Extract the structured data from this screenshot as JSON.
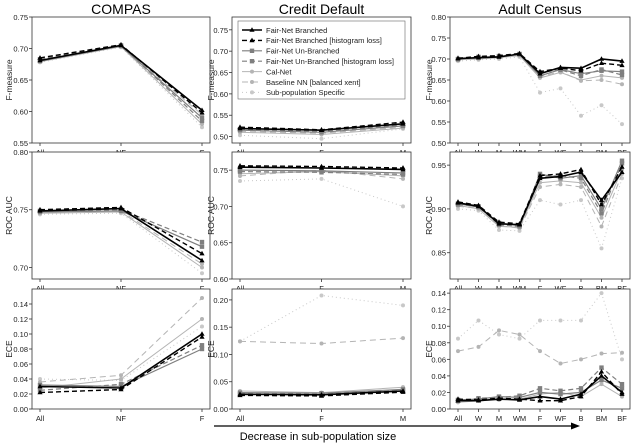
{
  "column_titles": [
    "COMPAS",
    "Credit Default",
    "Adult Census"
  ],
  "bottom_label": "Decrease in sub-population size",
  "series": [
    {
      "name": "Fair-Net Branched",
      "color": "#000000",
      "dash": "",
      "marker": "triangle",
      "width": 1.6
    },
    {
      "name": "Fair-Net Branched [histogram loss]",
      "color": "#000000",
      "dash": "5,3",
      "marker": "triangle",
      "width": 1.4
    },
    {
      "name": "Fair-Net Un-Branched",
      "color": "#7f7f7f",
      "dash": "",
      "marker": "square",
      "width": 1.2
    },
    {
      "name": "Fair-Net Un-Branched [histogram loss]",
      "color": "#7f7f7f",
      "dash": "5,3",
      "marker": "square",
      "width": 1.2
    },
    {
      "name": "Cal-Net",
      "color": "#b4b4b4",
      "dash": "",
      "marker": "circle",
      "width": 1.0
    },
    {
      "name": "Baseline NN [balanced xent]",
      "color": "#b4b4b4",
      "dash": "6,4",
      "marker": "circle",
      "width": 1.0
    },
    {
      "name": "Sub-population Specific",
      "color": "#c8c8c8",
      "dash": "1,3",
      "marker": "circle",
      "width": 1.0
    }
  ],
  "chart_data": [
    {
      "type": "line",
      "column": "COMPAS",
      "ylabel": "F-measure",
      "categories": [
        "All",
        "NF",
        "F"
      ],
      "ylim": [
        0.55,
        0.75
      ],
      "yticks": [
        "0.55",
        "0.60",
        "0.65",
        "0.70",
        "0.75"
      ],
      "series": [
        [
          0.681,
          0.705,
          0.602
        ],
        [
          0.685,
          0.706,
          0.598
        ],
        [
          0.68,
          0.704,
          0.59
        ],
        [
          0.683,
          0.705,
          0.585
        ],
        [
          0.679,
          0.703,
          0.58
        ],
        [
          0.682,
          0.704,
          0.595
        ],
        [
          0.678,
          0.702,
          0.575
        ]
      ]
    },
    {
      "type": "line",
      "column": "COMPAS",
      "ylabel": "ROC AUC",
      "categories": [
        "All",
        "NF",
        "F"
      ],
      "ylim": [
        0.69,
        0.8
      ],
      "yticks": [
        "0.70",
        "0.75",
        "0.80"
      ],
      "series": [
        [
          0.749,
          0.751,
          0.706
        ],
        [
          0.75,
          0.752,
          0.712
        ],
        [
          0.748,
          0.749,
          0.718
        ],
        [
          0.749,
          0.75,
          0.722
        ],
        [
          0.747,
          0.748,
          0.7
        ],
        [
          0.748,
          0.749,
          0.703
        ],
        [
          0.746,
          0.747,
          0.695
        ]
      ]
    },
    {
      "type": "line",
      "column": "COMPAS",
      "ylabel": "ECE",
      "categories": [
        "All",
        "NF",
        "F"
      ],
      "ylim": [
        0.0,
        0.16
      ],
      "yticks": [
        "0.00",
        "0.02",
        "0.04",
        "0.06",
        "0.08",
        "0.10",
        "0.12",
        "0.14"
      ],
      "series": [
        [
          0.03,
          0.028,
          0.1
        ],
        [
          0.022,
          0.026,
          0.096
        ],
        [
          0.032,
          0.03,
          0.08
        ],
        [
          0.025,
          0.033,
          0.085
        ],
        [
          0.028,
          0.04,
          0.12
        ],
        [
          0.036,
          0.045,
          0.148
        ],
        [
          0.04,
          0.038,
          0.11
        ]
      ]
    },
    {
      "type": "line",
      "column": "Credit Default",
      "ylabel": "F-measure",
      "categories": [
        "All",
        "F",
        "M"
      ],
      "ylim": [
        0.485,
        0.78
      ],
      "yticks": [
        "0.50",
        "0.55",
        "0.60",
        "0.65",
        "0.70",
        "0.75"
      ],
      "series": [
        [
          0.519,
          0.515,
          0.53
        ],
        [
          0.522,
          0.516,
          0.534
        ],
        [
          0.515,
          0.51,
          0.525
        ],
        [
          0.517,
          0.512,
          0.527
        ],
        [
          0.51,
          0.505,
          0.52
        ],
        [
          0.512,
          0.508,
          0.522
        ],
        [
          0.503,
          0.495,
          0.518
        ]
      ]
    },
    {
      "type": "line",
      "column": "Credit Default",
      "ylabel": "ROC AUC",
      "categories": [
        "All",
        "F",
        "M"
      ],
      "ylim": [
        0.6,
        0.775
      ],
      "yticks": [
        "0.60",
        "0.65",
        "0.70",
        "0.75"
      ],
      "series": [
        [
          0.754,
          0.753,
          0.751
        ],
        [
          0.756,
          0.755,
          0.753
        ],
        [
          0.75,
          0.749,
          0.746
        ],
        [
          0.748,
          0.747,
          0.744
        ],
        [
          0.745,
          0.748,
          0.742
        ],
        [
          0.742,
          0.75,
          0.738
        ],
        [
          0.735,
          0.738,
          0.7
        ]
      ]
    },
    {
      "type": "line",
      "column": "Credit Default",
      "ylabel": "ECE",
      "categories": [
        "All",
        "F",
        "M"
      ],
      "ylim": [
        0.0,
        0.22
      ],
      "yticks": [
        "0.00",
        "0.05",
        "0.10",
        "0.15",
        "0.20"
      ],
      "series": [
        [
          0.027,
          0.026,
          0.033
        ],
        [
          0.025,
          0.024,
          0.031
        ],
        [
          0.03,
          0.029,
          0.036
        ],
        [
          0.028,
          0.027,
          0.034
        ],
        [
          0.033,
          0.03,
          0.04
        ],
        [
          0.124,
          0.12,
          0.13
        ],
        [
          0.124,
          0.208,
          0.19
        ]
      ]
    },
    {
      "type": "line",
      "column": "Adult Census",
      "ylabel": "F-measure",
      "categories": [
        "All",
        "W",
        "M",
        "WM",
        "F",
        "WF",
        "B",
        "BM",
        "BF"
      ],
      "ylim": [
        0.5,
        0.8
      ],
      "yticks": [
        "0.50",
        "0.55",
        "0.60",
        "0.65",
        "0.70",
        "0.75",
        "0.80"
      ],
      "series": [
        [
          0.701,
          0.703,
          0.705,
          0.712,
          0.665,
          0.68,
          0.678,
          0.7,
          0.695
        ],
        [
          0.702,
          0.706,
          0.708,
          0.713,
          0.67,
          0.678,
          0.672,
          0.69,
          0.685
        ],
        [
          0.7,
          0.704,
          0.706,
          0.711,
          0.66,
          0.675,
          0.665,
          0.672,
          0.67
        ],
        [
          0.699,
          0.705,
          0.707,
          0.712,
          0.668,
          0.674,
          0.66,
          0.675,
          0.662
        ],
        [
          0.698,
          0.7,
          0.703,
          0.708,
          0.655,
          0.668,
          0.65,
          0.66,
          0.655
        ],
        [
          0.699,
          0.702,
          0.705,
          0.71,
          0.658,
          0.67,
          0.648,
          0.65,
          0.64
        ],
        [
          0.695,
          0.698,
          0.7,
          0.705,
          0.62,
          0.63,
          0.565,
          0.59,
          0.545
        ]
      ]
    },
    {
      "type": "line",
      "column": "Adult Census",
      "ylabel": "ROC AUC",
      "categories": [
        "All",
        "W",
        "M",
        "WM",
        "F",
        "WF",
        "B",
        "BM",
        "BF"
      ],
      "ylim": [
        0.82,
        0.965
      ],
      "yticks": [
        "0.85",
        "0.90",
        "0.95"
      ],
      "series": [
        [
          0.907,
          0.903,
          0.883,
          0.882,
          0.935,
          0.937,
          0.942,
          0.91,
          0.942
        ],
        [
          0.908,
          0.904,
          0.885,
          0.883,
          0.938,
          0.94,
          0.945,
          0.905,
          0.948
        ],
        [
          0.906,
          0.902,
          0.884,
          0.881,
          0.94,
          0.935,
          0.938,
          0.9,
          0.955
        ],
        [
          0.905,
          0.903,
          0.882,
          0.88,
          0.937,
          0.938,
          0.935,
          0.895,
          0.952
        ],
        [
          0.904,
          0.9,
          0.88,
          0.879,
          0.93,
          0.932,
          0.93,
          0.89,
          0.945
        ],
        [
          0.903,
          0.901,
          0.881,
          0.878,
          0.925,
          0.928,
          0.925,
          0.88,
          0.94
        ],
        [
          0.9,
          0.898,
          0.876,
          0.875,
          0.91,
          0.905,
          0.91,
          0.855,
          0.935
        ]
      ]
    },
    {
      "type": "line",
      "column": "Adult Census",
      "ylabel": "ECE",
      "categories": [
        "All",
        "W",
        "M",
        "WM",
        "F",
        "WF",
        "B",
        "BM",
        "BF"
      ],
      "ylim": [
        0.0,
        0.145
      ],
      "yticks": [
        "0.00",
        "0.02",
        "0.04",
        "0.06",
        "0.08",
        "0.10",
        "0.12",
        "0.14"
      ],
      "series": [
        [
          0.01,
          0.01,
          0.012,
          0.011,
          0.015,
          0.012,
          0.018,
          0.04,
          0.02
        ],
        [
          0.012,
          0.011,
          0.013,
          0.012,
          0.01,
          0.01,
          0.015,
          0.045,
          0.018
        ],
        [
          0.011,
          0.012,
          0.015,
          0.014,
          0.02,
          0.018,
          0.02,
          0.035,
          0.025
        ],
        [
          0.01,
          0.013,
          0.014,
          0.016,
          0.025,
          0.022,
          0.025,
          0.05,
          0.03
        ],
        [
          0.008,
          0.01,
          0.011,
          0.012,
          0.018,
          0.02,
          0.015,
          0.03,
          0.015
        ],
        [
          0.07,
          0.075,
          0.095,
          0.09,
          0.07,
          0.055,
          0.06,
          0.067,
          0.068
        ],
        [
          0.085,
          0.107,
          0.09,
          0.085,
          0.107,
          0.107,
          0.107,
          0.14,
          0.06
        ]
      ]
    }
  ]
}
